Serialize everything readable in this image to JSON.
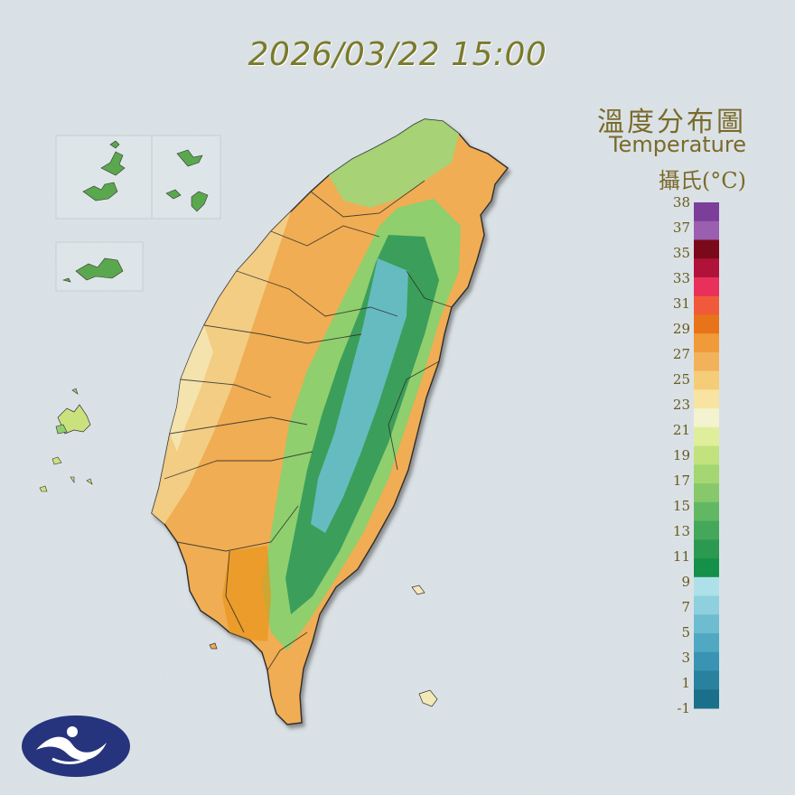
{
  "timestamp": "2026/03/22 15:00",
  "title": {
    "zh": "溫度分布圖",
    "en": "Temperature",
    "unit": "攝氏(°C)"
  },
  "legend": {
    "labels": [
      "38",
      "37",
      "35",
      "33",
      "31",
      "29",
      "27",
      "25",
      "23",
      "21",
      "19",
      "17",
      "15",
      "13",
      "11",
      "9",
      "7",
      "5",
      "3",
      "1",
      "-1"
    ],
    "bands": [
      {
        "color": "#7b3f9a"
      },
      {
        "color": "#9a5fae"
      },
      {
        "color": "#7a0a1a"
      },
      {
        "color": "#b0123a"
      },
      {
        "color": "#e8305a"
      },
      {
        "color": "#f05a3a"
      },
      {
        "color": "#e8741a"
      },
      {
        "color": "#f09a3a"
      },
      {
        "color": "#f2b25a"
      },
      {
        "color": "#f5cc78"
      },
      {
        "color": "#f8e4a0"
      },
      {
        "color": "#f3f3cf"
      },
      {
        "color": "#dfee9a"
      },
      {
        "color": "#c2e27e"
      },
      {
        "color": "#a4d672"
      },
      {
        "color": "#86c86a"
      },
      {
        "color": "#62b862"
      },
      {
        "color": "#44a85a"
      },
      {
        "color": "#2b9a50"
      },
      {
        "color": "#149048"
      },
      {
        "color": "#aee0ea"
      },
      {
        "color": "#8ed0de"
      },
      {
        "color": "#6ebcd0"
      },
      {
        "color": "#50a8c2"
      },
      {
        "color": "#3894b2"
      },
      {
        "color": "#28829e"
      },
      {
        "color": "#1a708a"
      }
    ]
  },
  "map": {
    "colors": {
      "ocean": "#d6dee3",
      "plain": "#f0ad52",
      "lowland": "#f3d08a",
      "coast": "#f4e8b8",
      "hills": "#8fcf6e",
      "mountain": "#3a9e5a",
      "peak": "#6ec0d2",
      "border": "#2d2d2d"
    }
  },
  "logo": {
    "name": "cwa-logo",
    "bg": "#26347e",
    "fg": "#ffffff"
  }
}
